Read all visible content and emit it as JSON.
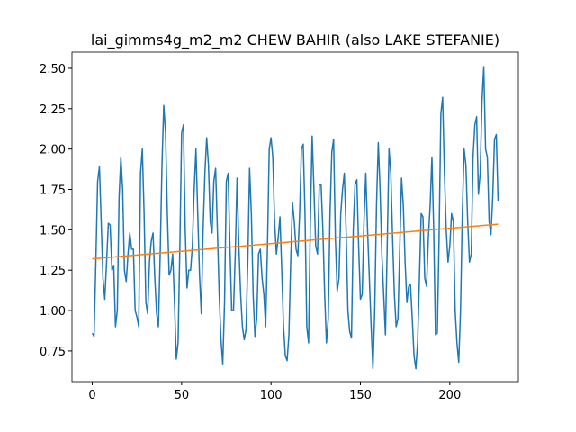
{
  "chart_data": {
    "type": "line",
    "title": "lai_gimms4g_m2_m2 CHEW BAHIR (also LAKE STEFANIE)",
    "x": [
      0,
      1,
      2,
      3,
      4,
      5,
      6,
      7,
      8,
      9,
      10,
      11,
      12,
      13,
      14,
      15,
      16,
      17,
      18,
      19,
      20,
      21,
      22,
      23,
      24,
      25,
      26,
      27,
      28,
      29,
      30,
      31,
      32,
      33,
      34,
      35,
      36,
      37,
      38,
      39,
      40,
      41,
      42,
      43,
      44,
      45,
      46,
      47,
      48,
      49,
      50,
      51,
      52,
      53,
      54,
      55,
      56,
      57,
      58,
      59,
      60,
      61,
      62,
      63,
      64,
      65,
      66,
      67,
      68,
      69,
      70,
      71,
      72,
      73,
      74,
      75,
      76,
      77,
      78,
      79,
      80,
      81,
      82,
      83,
      84,
      85,
      86,
      87,
      88,
      89,
      90,
      91,
      92,
      93,
      94,
      95,
      96,
      97,
      98,
      99,
      100,
      101,
      102,
      103,
      104,
      105,
      106,
      107,
      108,
      109,
      110,
      111,
      112,
      113,
      114,
      115,
      116,
      117,
      118,
      119,
      120,
      121,
      122,
      123,
      124,
      125,
      126,
      127,
      128,
      129,
      130,
      131,
      132,
      133,
      134,
      135,
      136,
      137,
      138,
      139,
      140,
      141,
      142,
      143,
      144,
      145,
      146,
      147,
      148,
      149,
      150,
      151,
      152,
      153,
      154,
      155,
      156,
      157,
      158,
      159,
      160,
      161,
      162,
      163,
      164,
      165,
      166,
      167,
      168,
      169,
      170,
      171,
      172,
      173,
      174,
      175,
      176,
      177,
      178,
      179,
      180,
      181,
      182,
      183,
      184,
      185,
      186,
      187,
      188,
      189,
      190,
      191,
      192,
      193,
      194,
      195,
      196,
      197,
      198,
      199,
      200,
      201,
      202,
      203,
      204,
      205,
      206,
      207,
      208,
      209,
      210,
      211,
      212,
      213,
      214,
      215,
      216,
      217,
      218,
      219,
      220,
      221,
      222,
      223,
      224,
      225,
      226,
      227
    ],
    "series": [
      {
        "color": "#1f77b4",
        "values": [
          0.86,
          0.84,
          1.3,
          1.8,
          1.89,
          1.55,
          1.2,
          1.07,
          1.3,
          1.54,
          1.53,
          1.25,
          1.28,
          0.9,
          1.0,
          1.7,
          1.95,
          1.75,
          1.25,
          1.18,
          1.35,
          1.48,
          1.38,
          1.38,
          1.0,
          0.96,
          0.9,
          1.85,
          2.0,
          1.6,
          1.05,
          0.98,
          1.3,
          1.43,
          1.48,
          1.2,
          0.98,
          0.9,
          1.35,
          1.9,
          2.27,
          2.1,
          1.6,
          1.22,
          1.25,
          1.35,
          1.05,
          0.7,
          0.8,
          1.4,
          2.1,
          2.15,
          1.5,
          1.14,
          1.25,
          1.25,
          1.4,
          1.75,
          2.0,
          1.6,
          1.22,
          0.98,
          1.5,
          1.85,
          2.07,
          1.9,
          1.55,
          1.48,
          1.8,
          1.88,
          1.5,
          1.1,
          0.82,
          0.67,
          1.05,
          1.8,
          1.85,
          1.4,
          1.0,
          1.0,
          1.35,
          1.82,
          1.4,
          1.1,
          0.9,
          0.82,
          0.88,
          1.3,
          1.88,
          1.6,
          1.1,
          0.84,
          0.95,
          1.35,
          1.38,
          1.2,
          1.1,
          0.9,
          1.4,
          2.0,
          2.07,
          1.95,
          1.55,
          1.35,
          1.45,
          1.58,
          1.25,
          0.9,
          0.72,
          0.69,
          0.85,
          1.3,
          1.67,
          1.55,
          1.38,
          1.34,
          1.6,
          2.0,
          2.03,
          1.6,
          0.9,
          0.8,
          1.55,
          2.08,
          1.75,
          1.4,
          1.35,
          1.78,
          1.78,
          1.5,
          1.1,
          0.8,
          0.95,
          1.6,
          1.98,
          2.06,
          1.45,
          1.12,
          1.2,
          1.6,
          1.75,
          1.85,
          1.5,
          1.0,
          0.87,
          0.83,
          1.5,
          1.78,
          1.81,
          1.4,
          1.07,
          1.1,
          1.55,
          1.85,
          1.5,
          1.2,
          0.9,
          0.64,
          1.0,
          1.65,
          2.04,
          1.75,
          1.35,
          1.1,
          0.85,
          1.4,
          2.0,
          1.85,
          1.45,
          1.1,
          0.9,
          0.95,
          1.38,
          1.82,
          1.65,
          1.3,
          1.05,
          1.15,
          1.16,
          0.95,
          0.72,
          0.64,
          0.8,
          1.2,
          1.6,
          1.58,
          1.2,
          1.15,
          1.45,
          1.65,
          1.95,
          1.5,
          0.85,
          0.86,
          1.45,
          2.22,
          2.32,
          1.85,
          1.5,
          1.3,
          1.4,
          1.6,
          1.55,
          1.0,
          0.8,
          0.68,
          1.0,
          1.6,
          2.0,
          1.9,
          1.55,
          1.3,
          1.35,
          1.95,
          2.15,
          2.2,
          1.72,
          1.85,
          2.3,
          2.51,
          2.0,
          1.95,
          1.55,
          1.47,
          1.7,
          2.06,
          2.09,
          1.68
        ]
      },
      {
        "color": "#ff7f0e",
        "x": [
          0,
          227
        ],
        "values": [
          1.32,
          1.535
        ]
      }
    ],
    "xlim": [
      -11.35,
      238.35
    ],
    "xticks": [
      0,
      50,
      100,
      150,
      200
    ],
    "ylim": [
      0.56,
      2.6
    ],
    "yticks": [
      0.75,
      {
        "value": 1,
        "label": "1.00"
      },
      1.25,
      {
        "value": 1.5,
        "label": "1.50"
      },
      1.75,
      {
        "value": 2,
        "label": "2.00"
      },
      2.25,
      {
        "value": 2.5,
        "label": "2.50"
      }
    ],
    "grid": false
  }
}
